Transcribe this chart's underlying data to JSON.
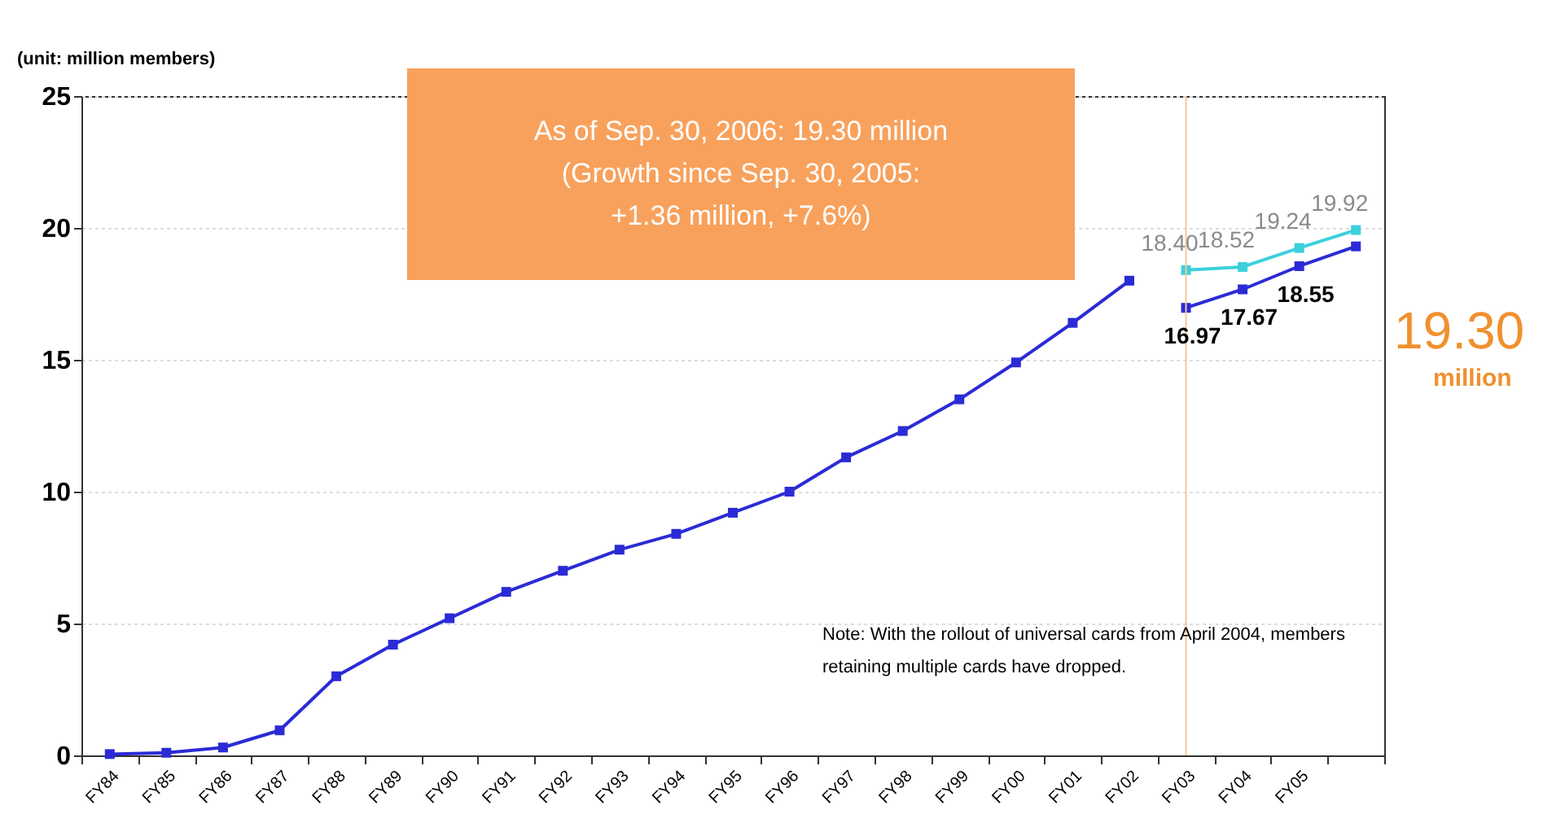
{
  "chart_data": {
    "type": "line",
    "ylabel": "(unit: million members)",
    "categories": [
      "FY84",
      "FY85",
      "FY86",
      "FY87",
      "FY88",
      "FY89",
      "FY90",
      "FY91",
      "FY92",
      "FY93",
      "FY94",
      "FY95",
      "FY96",
      "FY97",
      "FY98",
      "FY99",
      "FY00",
      "FY01",
      "FY02",
      "FY03",
      "FY04",
      "FY05",
      null
    ],
    "series": [
      {
        "color": "#2b2bd6",
        "values": [
          0.05,
          0.1,
          0.3,
          0.95,
          3.0,
          4.2,
          5.2,
          6.2,
          7.0,
          7.8,
          8.4,
          9.2,
          10.0,
          11.3,
          12.3,
          13.5,
          14.9,
          16.4,
          18.0,
          null,
          null,
          null,
          null
        ]
      },
      {
        "color": "#3cd0dc",
        "values": [
          null,
          null,
          null,
          null,
          null,
          null,
          null,
          null,
          null,
          null,
          null,
          null,
          null,
          null,
          null,
          null,
          null,
          null,
          null,
          18.4,
          18.52,
          19.24,
          19.92
        ],
        "value_labels": [
          null,
          null,
          null,
          null,
          null,
          null,
          null,
          null,
          null,
          null,
          null,
          null,
          null,
          null,
          null,
          null,
          null,
          null,
          null,
          "18.40",
          "18.52",
          "19.24",
          "19.92"
        ]
      },
      {
        "color": "#2b2bd6",
        "values": [
          null,
          null,
          null,
          null,
          null,
          null,
          null,
          null,
          null,
          null,
          null,
          null,
          null,
          null,
          null,
          null,
          null,
          null,
          null,
          16.97,
          17.67,
          18.55,
          19.3
        ],
        "value_labels": [
          null,
          null,
          null,
          null,
          null,
          null,
          null,
          null,
          null,
          null,
          null,
          null,
          null,
          null,
          null,
          null,
          null,
          null,
          null,
          "16.97",
          "17.67",
          "18.55",
          null
        ]
      }
    ],
    "ylim": [
      0,
      25
    ],
    "yticks": [
      0,
      5,
      10,
      15,
      20,
      25
    ],
    "grid": "y",
    "marker": "square",
    "line_style": "solid",
    "ref_lines": [
      {
        "axis": "x",
        "value": "FY03",
        "color": "#f5c89a"
      }
    ],
    "annotations": [
      "As of Sep. 30, 2006: 19.30 million\n(Growth since Sep. 30, 2005:\n+1.36 million, +7.6%)",
      "19.30\nmillion",
      "Note: With the rollout of universal cards from April 2004, members\nretaining multiple cards have dropped."
    ]
  }
}
